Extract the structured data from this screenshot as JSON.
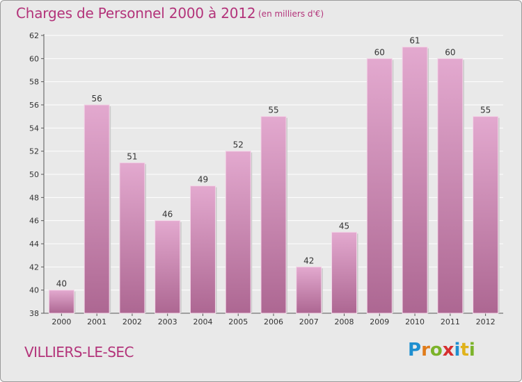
{
  "header": {
    "title": "Charges de Personnel 2000 à 2012",
    "subtitle": "(en milliers d'€)"
  },
  "footer": {
    "commune": "VILLIERS-LE-SEC",
    "logo_text": "Proxiti"
  },
  "colors": {
    "accent": "#b3337a",
    "bar_light": "#e2a7cd",
    "bar_dark": "#b06a96",
    "background": "#e9e9e9"
  },
  "chart_data": {
    "type": "bar",
    "title": "Charges de Personnel 2000 à 2012",
    "subtitle": "(en milliers d'€)",
    "xlabel": "",
    "ylabel": "",
    "categories": [
      "2000",
      "2001",
      "2002",
      "2003",
      "2004",
      "2005",
      "2006",
      "2007",
      "2008",
      "2009",
      "2010",
      "2011",
      "2012"
    ],
    "values": [
      40,
      56,
      51,
      46,
      49,
      52,
      55,
      42,
      45,
      60,
      61,
      60,
      55
    ],
    "ylim": [
      38,
      62
    ],
    "yticks": [
      38,
      40,
      42,
      44,
      46,
      48,
      50,
      52,
      54,
      56,
      58,
      60,
      62
    ],
    "grid": true,
    "legend": "none"
  }
}
